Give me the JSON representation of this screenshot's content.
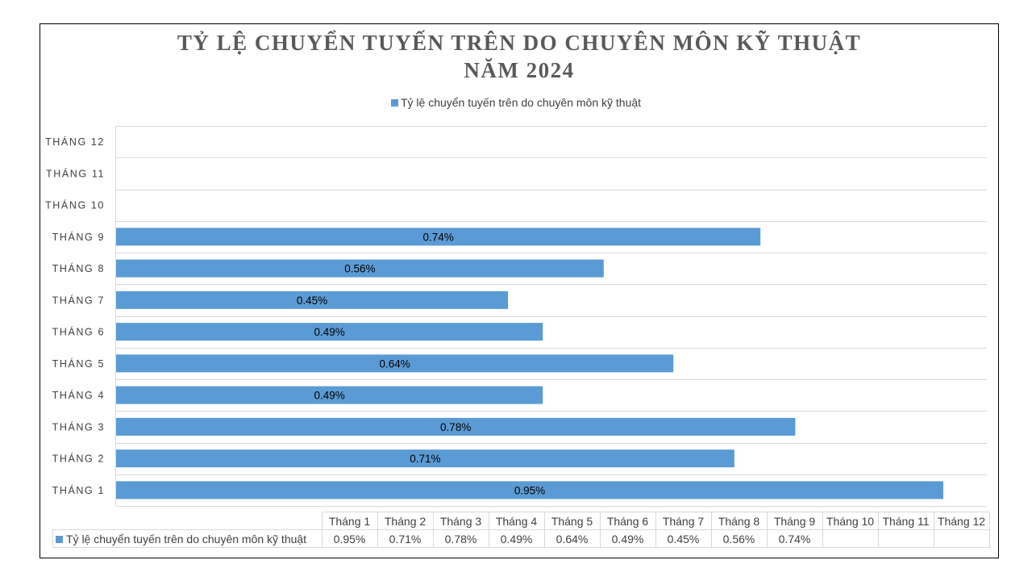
{
  "chart_data": {
    "type": "bar",
    "orientation": "horizontal",
    "title_lines": [
      "TỶ LỆ CHUYỂN TUYẾN TRÊN DO CHUYÊN MÔN KỸ THUẬT",
      "NĂM 2024"
    ],
    "legend_position": "top",
    "grid": true,
    "xlim": [
      0,
      0.95
    ],
    "categories": [
      "THÁNG 1",
      "THÁNG 2",
      "THÁNG 3",
      "THÁNG 4",
      "THÁNG 5",
      "THÁNG 6",
      "THÁNG 7",
      "THÁNG 8",
      "THÁNG 9",
      "THÁNG 10",
      "THÁNG 11",
      "THÁNG 12"
    ],
    "series": [
      {
        "name": "Tỷ lệ chuyển tuyến trên do chuyên môn kỹ thuật",
        "color": "#5b9bd5",
        "values": [
          0.95,
          0.71,
          0.78,
          0.49,
          0.64,
          0.49,
          0.45,
          0.56,
          0.74,
          null,
          null,
          null
        ],
        "labels": [
          "0.95%",
          "0.71%",
          "0.78%",
          "0.49%",
          "0.64%",
          "0.49%",
          "0.45%",
          "0.56%",
          "0.74%",
          "",
          "",
          ""
        ]
      }
    ],
    "data_table": {
      "columns": [
        "Tháng 1",
        "Tháng 2",
        "Tháng 3",
        "Tháng 4",
        "Tháng 5",
        "Tháng 6",
        "Tháng 7",
        "Tháng 8",
        "Tháng 9",
        "Tháng 10",
        "Tháng 11",
        "Tháng 12"
      ],
      "values": [
        "0.95%",
        "0.71%",
        "0.78%",
        "0.49%",
        "0.64%",
        "0.49%",
        "0.45%",
        "0.56%",
        "0.74%",
        "",
        "",
        ""
      ]
    }
  }
}
